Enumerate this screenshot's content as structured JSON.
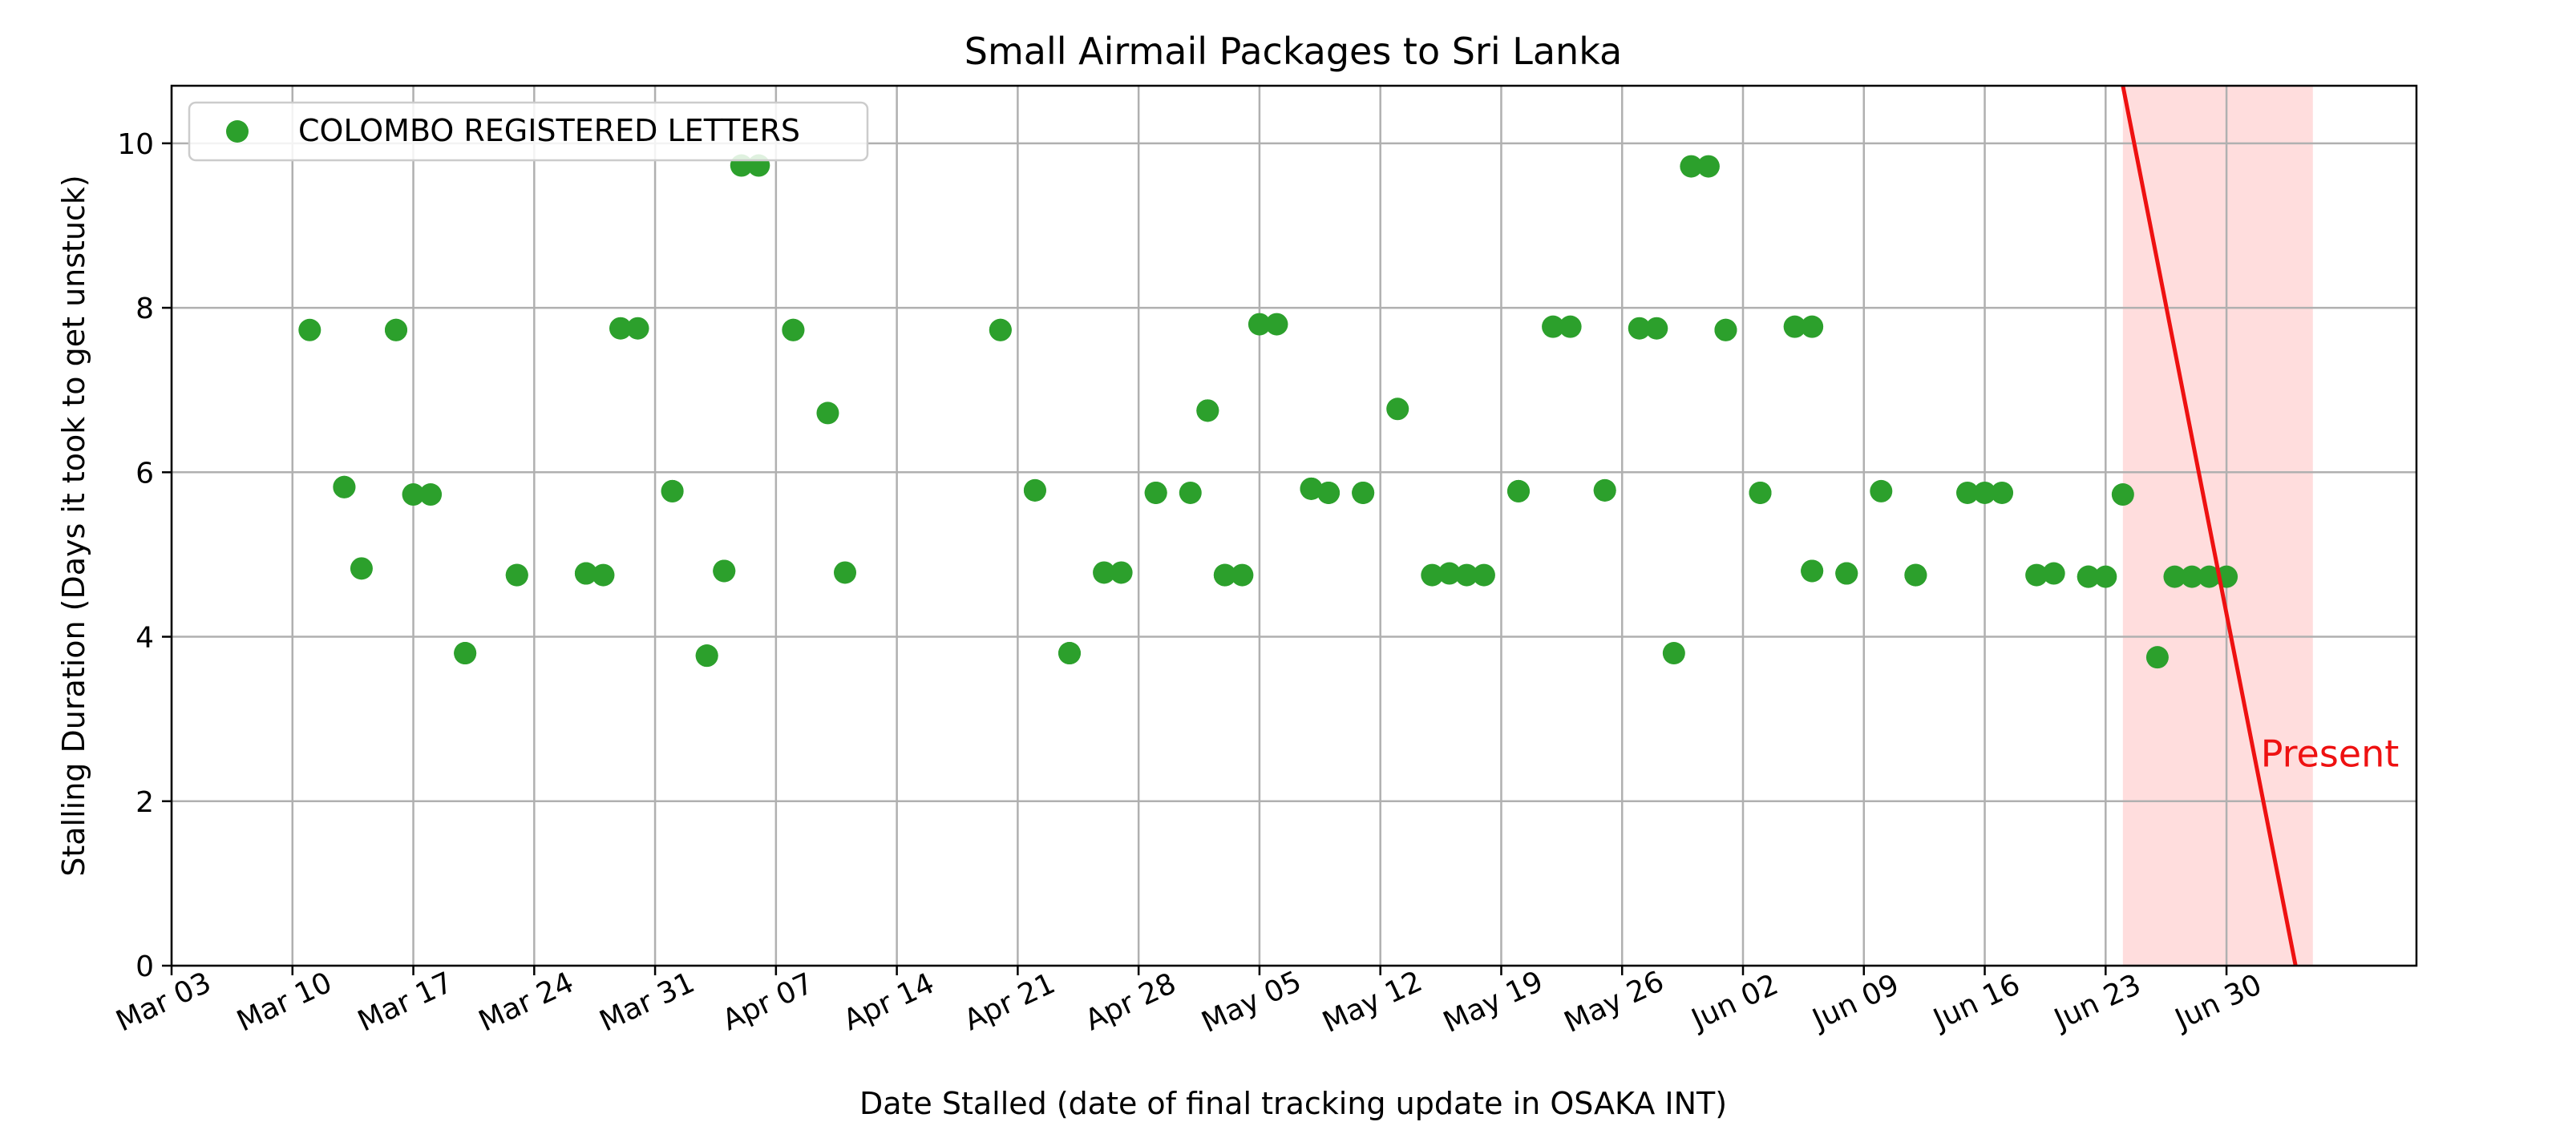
{
  "chart_data": {
    "type": "scatter",
    "title": "Small Airmail Packages to Sri Lanka",
    "xlabel": "Date Stalled (date of final tracking update in OSAKA INT)",
    "ylabel": "Stalling Duration (Days it took to get unstuck)",
    "x_tick_labels": [
      "Mar 03",
      "Mar 10",
      "Mar 17",
      "Mar 24",
      "Mar 31",
      "Apr 07",
      "Apr 14",
      "Apr 21",
      "Apr 28",
      "May 05",
      "May 12",
      "May 19",
      "May 26",
      "Jun 02",
      "Jun 09",
      "Jun 16",
      "Jun 23",
      "Jun 30"
    ],
    "y_ticks": [
      0,
      2,
      4,
      6,
      8,
      10
    ],
    "xlim": [
      "Mar 03",
      "Jul 11"
    ],
    "ylim": [
      0,
      10.7
    ],
    "grid": true,
    "legend_position": "top-left",
    "series": [
      {
        "name": "COLOMBO REGISTERED LETTERS",
        "color": "#2ca02c",
        "points": [
          {
            "x": "Mar 11",
            "y": 7.73
          },
          {
            "x": "Mar 13",
            "y": 5.82
          },
          {
            "x": "Mar 13",
            "y": 5.82
          },
          {
            "x": "Mar 14",
            "y": 4.83
          },
          {
            "x": "Mar 16",
            "y": 7.73
          },
          {
            "x": "Mar 16",
            "y": 7.73
          },
          {
            "x": "Mar 17",
            "y": 5.73
          },
          {
            "x": "Mar 18",
            "y": 5.73
          },
          {
            "x": "Mar 20",
            "y": 3.8
          },
          {
            "x": "Mar 20",
            "y": 3.8
          },
          {
            "x": "Mar 23",
            "y": 4.75
          },
          {
            "x": "Mar 23",
            "y": 4.75
          },
          {
            "x": "Mar 27",
            "y": 4.77
          },
          {
            "x": "Mar 27",
            "y": 4.77
          },
          {
            "x": "Mar 28",
            "y": 4.75
          },
          {
            "x": "Mar 29",
            "y": 7.75
          },
          {
            "x": "Mar 30",
            "y": 7.75
          },
          {
            "x": "Apr 01",
            "y": 5.77
          },
          {
            "x": "Apr 01",
            "y": 5.77
          },
          {
            "x": "Apr 03",
            "y": 3.77
          },
          {
            "x": "Apr 03",
            "y": 3.77
          },
          {
            "x": "Apr 04",
            "y": 4.8
          },
          {
            "x": "Apr 04",
            "y": 4.8
          },
          {
            "x": "Apr 05",
            "y": 9.73
          },
          {
            "x": "Apr 06",
            "y": 9.73
          },
          {
            "x": "Apr 08",
            "y": 7.73
          },
          {
            "x": "Apr 08",
            "y": 7.73
          },
          {
            "x": "Apr 10",
            "y": 6.72
          },
          {
            "x": "Apr 11",
            "y": 4.78
          },
          {
            "x": "Apr 20",
            "y": 7.73
          },
          {
            "x": "Apr 20",
            "y": 7.73
          },
          {
            "x": "Apr 22",
            "y": 5.78
          },
          {
            "x": "Apr 22",
            "y": 5.78
          },
          {
            "x": "Apr 24",
            "y": 3.8
          },
          {
            "x": "Apr 24",
            "y": 3.8
          },
          {
            "x": "Apr 26",
            "y": 4.78
          },
          {
            "x": "Apr 27",
            "y": 4.78
          },
          {
            "x": "Apr 29",
            "y": 5.75
          },
          {
            "x": "Apr 29",
            "y": 5.75
          },
          {
            "x": "May 01",
            "y": 5.75
          },
          {
            "x": "May 02",
            "y": 6.75
          },
          {
            "x": "May 02",
            "y": 6.75
          },
          {
            "x": "May 03",
            "y": 4.75
          },
          {
            "x": "May 03",
            "y": 4.75
          },
          {
            "x": "May 04",
            "y": 4.75
          },
          {
            "x": "May 05",
            "y": 7.8
          },
          {
            "x": "May 06",
            "y": 7.8
          },
          {
            "x": "May 08",
            "y": 5.8
          },
          {
            "x": "May 08",
            "y": 5.8
          },
          {
            "x": "May 09",
            "y": 5.75
          },
          {
            "x": "May 09",
            "y": 5.75
          },
          {
            "x": "May 11",
            "y": 5.75
          },
          {
            "x": "May 11",
            "y": 5.75
          },
          {
            "x": "May 13",
            "y": 6.77
          },
          {
            "x": "May 15",
            "y": 4.75
          },
          {
            "x": "May 16",
            "y": 4.77
          },
          {
            "x": "May 17",
            "y": 4.75
          },
          {
            "x": "May 18",
            "y": 4.75
          },
          {
            "x": "May 20",
            "y": 5.77
          },
          {
            "x": "May 20",
            "y": 5.77
          },
          {
            "x": "May 22",
            "y": 7.77
          },
          {
            "x": "May 23",
            "y": 7.77
          },
          {
            "x": "May 25",
            "y": 5.78
          },
          {
            "x": "May 25",
            "y": 5.78
          },
          {
            "x": "May 27",
            "y": 7.75
          },
          {
            "x": "May 28",
            "y": 7.75
          },
          {
            "x": "May 29",
            "y": 3.8
          },
          {
            "x": "May 30",
            "y": 9.72
          },
          {
            "x": "May 31",
            "y": 9.72
          },
          {
            "x": "Jun 01",
            "y": 7.73
          },
          {
            "x": "Jun 01",
            "y": 7.73
          },
          {
            "x": "Jun 03",
            "y": 5.75
          },
          {
            "x": "Jun 03",
            "y": 5.75
          },
          {
            "x": "Jun 05",
            "y": 7.77
          },
          {
            "x": "Jun 06",
            "y": 7.77
          },
          {
            "x": "Jun 06",
            "y": 4.8
          },
          {
            "x": "Jun 06",
            "y": 4.8
          },
          {
            "x": "Jun 08",
            "y": 4.77
          },
          {
            "x": "Jun 08",
            "y": 4.77
          },
          {
            "x": "Jun 10",
            "y": 5.77
          },
          {
            "x": "Jun 12",
            "y": 4.75
          },
          {
            "x": "Jun 12",
            "y": 4.75
          },
          {
            "x": "Jun 15",
            "y": 5.75
          },
          {
            "x": "Jun 16",
            "y": 5.75
          },
          {
            "x": "Jun 17",
            "y": 5.75
          },
          {
            "x": "Jun 19",
            "y": 4.75
          },
          {
            "x": "Jun 20",
            "y": 4.77
          },
          {
            "x": "Jun 22",
            "y": 4.73
          },
          {
            "x": "Jun 22",
            "y": 4.73
          },
          {
            "x": "Jun 23",
            "y": 4.73
          },
          {
            "x": "Jun 24",
            "y": 5.73
          },
          {
            "x": "Jun 26",
            "y": 3.75
          },
          {
            "x": "Jun 27",
            "y": 4.73
          },
          {
            "x": "Jun 28",
            "y": 4.73
          },
          {
            "x": "Jun 29",
            "y": 4.73
          },
          {
            "x": "Jun 30",
            "y": 4.73
          }
        ]
      }
    ],
    "annotation": {
      "text": "Present",
      "color": "#ee1111",
      "shade_color": "#ffdddd",
      "line_top": {
        "x": "Jun 24",
        "y": 10.7
      },
      "line_bottom": {
        "x": "Jul 04",
        "y": 0
      },
      "shade_from": "Jun 24",
      "shade_to": "Jul 05",
      "label_at": {
        "x": "Jul 03",
        "y": 2.4
      }
    }
  }
}
